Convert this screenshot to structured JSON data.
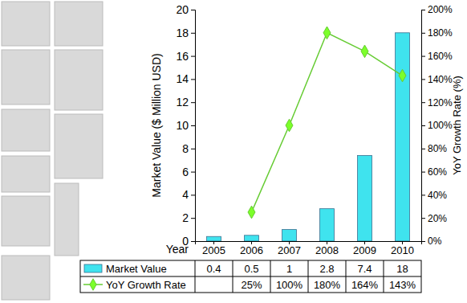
{
  "chart_data": {
    "type": "bar",
    "x_label": "Year",
    "y_label": "Market Value ($ Million USD)",
    "y2_label": "YoY Growth Rate (%)",
    "categories": [
      "2005",
      "2006",
      "2007",
      "2008",
      "2009",
      "2010"
    ],
    "series": [
      {
        "name": "Market Value",
        "type": "bar",
        "color": "#3fe3ee",
        "values": [
          0.4,
          0.5,
          1,
          2.8,
          7.4,
          18
        ],
        "data_labels": true
      },
      {
        "name": "YoY Growth Rate",
        "type": "line",
        "axis": "y2",
        "color": "#66cc33",
        "marker": "diamond",
        "values": [
          null,
          25,
          100,
          180,
          164,
          143
        ],
        "value_labels": [
          null,
          "25%",
          "100%",
          "180%",
          "164%",
          "143%"
        ],
        "data_labels": true
      }
    ],
    "ylim": [
      0,
      20
    ],
    "yticks": [
      0,
      2,
      4,
      6,
      8,
      10,
      12,
      14,
      16,
      18,
      20
    ],
    "y2lim": [
      0,
      200
    ],
    "y2ticks": [
      {
        "value": 0,
        "label": "0%"
      },
      {
        "value": 20,
        "label": "20%"
      },
      {
        "value": 40,
        "label": "40%"
      },
      {
        "value": 60,
        "label": "60%"
      },
      {
        "value": 80,
        "label": "80%"
      },
      {
        "value": 100,
        "label": "100%"
      },
      {
        "value": 120,
        "label": "120%"
      },
      {
        "value": 140,
        "label": "140%"
      },
      {
        "value": 160,
        "label": "160%"
      },
      {
        "value": 180,
        "label": "180%"
      },
      {
        "value": 200,
        "label": "200%"
      }
    ],
    "grid": false
  }
}
